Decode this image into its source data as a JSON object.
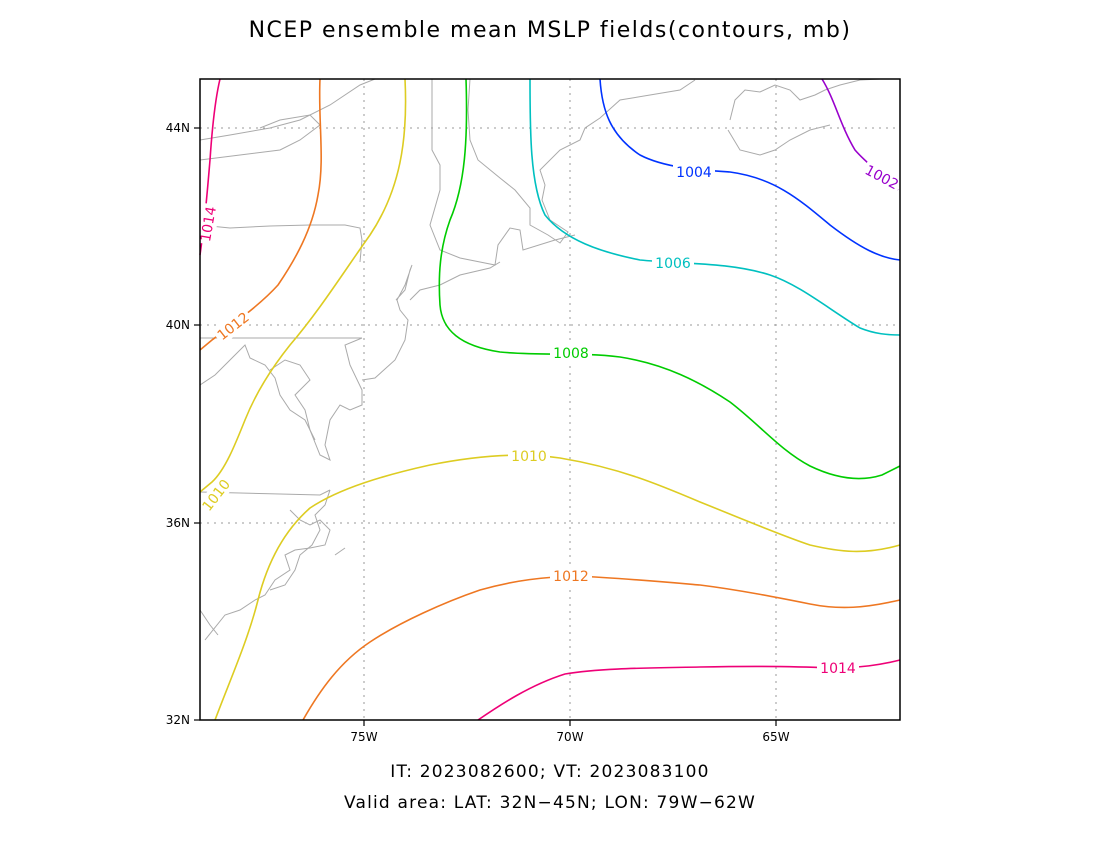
{
  "title": "NCEP ensemble mean MSLP fields(contours, mb)",
  "footer": {
    "times": "IT: 2023082600; VT: 2023083100",
    "area": "Valid area: LAT: 32N−45N; LON: 79W−62W"
  },
  "map": {
    "lat_ticks": [
      {
        "value": 32,
        "label": "32N"
      },
      {
        "value": 36,
        "label": "36N"
      },
      {
        "value": 40,
        "label": "40N"
      },
      {
        "value": 44,
        "label": "44N"
      }
    ],
    "lon_ticks": [
      {
        "value": -75,
        "label": "75W"
      },
      {
        "value": -70,
        "label": "70W"
      },
      {
        "value": -65,
        "label": "65W"
      }
    ],
    "lat_range": [
      32,
      45
    ],
    "lon_range": [
      -79,
      -62
    ],
    "gridlines": "dotted",
    "coastlines_color": "#aaaaaa",
    "contour_labels": [
      {
        "text": "1002",
        "color": "#9900cc"
      },
      {
        "text": "1004",
        "color": "#0033ff"
      },
      {
        "text": "1006",
        "color": "#00c0c0"
      },
      {
        "text": "1008",
        "color": "#00cc00"
      },
      {
        "text": "1010",
        "color": "#ddcc22"
      },
      {
        "text": "1010",
        "color": "#ddcc22"
      },
      {
        "text": "1012",
        "color": "#ee7722"
      },
      {
        "text": "1012",
        "color": "#ee7722"
      },
      {
        "text": "1014",
        "color": "#ee0077"
      },
      {
        "text": "1014",
        "color": "#ee0077"
      }
    ]
  }
}
